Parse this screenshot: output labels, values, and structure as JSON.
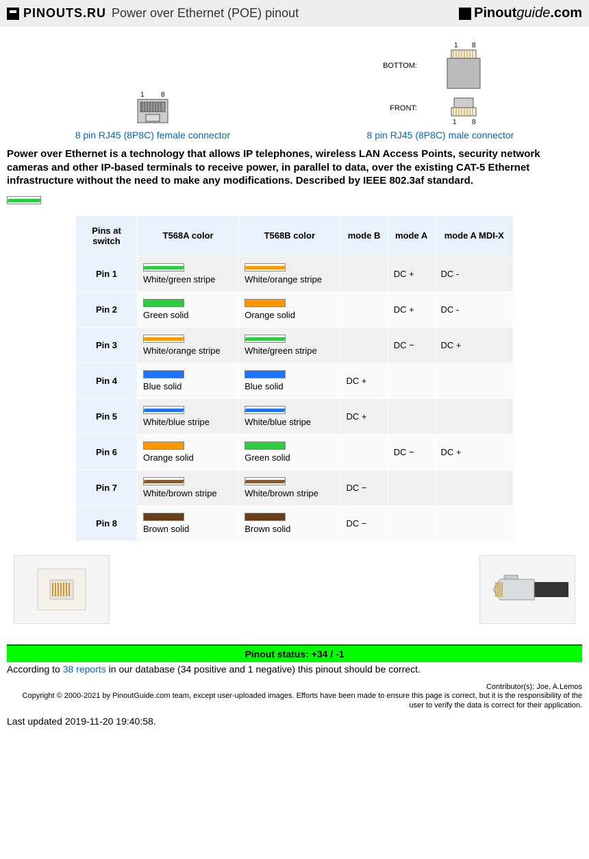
{
  "header": {
    "site_left": "PINOUTS.RU",
    "title": "Power over Ethernet (POE) pinout",
    "site_right_a": "Pinout",
    "site_right_b": "guide",
    "site_right_c": ".com"
  },
  "connectors": {
    "female": {
      "pin_left": "1",
      "pin_right": "8",
      "link": "8 pin RJ45 (8P8C) female connector"
    },
    "male": {
      "pin_left": "1",
      "pin_right": "8",
      "bottom_label": "BOTTOM:",
      "front_label": "FRONT:",
      "link": "8 pin RJ45 (8P8C) male connector"
    }
  },
  "intro": "Power over Ethernet is a technology that allows IP telephones, wireless LAN Access Points, security network cameras and other IP-based terminals to receive power, in parallel to data, over the existing CAT-5 Ethernet infrastructure without the need to make any modifications. Described by IEEE 802.3af standard.",
  "table": {
    "headers": [
      "Pins at switch",
      "T568A color",
      "T568B color",
      "mode B",
      "mode A",
      "mode A MDI-X"
    ],
    "rows": [
      {
        "pin": "Pin 1",
        "a": {
          "label": "White/green stripe",
          "type": "stripe",
          "color": "#2ecc40"
        },
        "b": {
          "label": "White/orange stripe",
          "type": "stripe",
          "color": "#ff9800"
        },
        "modeB": "",
        "modeA": "DC +",
        "modeAX": "DC -"
      },
      {
        "pin": "Pin 2",
        "a": {
          "label": "Green solid",
          "type": "solid",
          "color": "#2ecc40"
        },
        "b": {
          "label": "Orange solid",
          "type": "solid",
          "color": "#ff9800"
        },
        "modeB": "",
        "modeA": "DC +",
        "modeAX": "DC -"
      },
      {
        "pin": "Pin 3",
        "a": {
          "label": "White/orange stripe",
          "type": "stripe",
          "color": "#ff9800"
        },
        "b": {
          "label": "White/green stripe",
          "type": "stripe",
          "color": "#2ecc40"
        },
        "modeB": "",
        "modeA": "DC −",
        "modeAX": "DC +"
      },
      {
        "pin": "Pin 4",
        "a": {
          "label": "Blue solid",
          "type": "solid",
          "color": "#1e73ff"
        },
        "b": {
          "label": "Blue solid",
          "type": "solid",
          "color": "#1e73ff"
        },
        "modeB": "DC +",
        "modeA": "",
        "modeAX": ""
      },
      {
        "pin": "Pin 5",
        "a": {
          "label": "White/blue stripe",
          "type": "stripe",
          "color": "#1e73ff"
        },
        "b": {
          "label": "White/blue stripe",
          "type": "stripe",
          "color": "#1e73ff"
        },
        "modeB": "DC +",
        "modeA": "",
        "modeAX": ""
      },
      {
        "pin": "Pin 6",
        "a": {
          "label": "Orange solid",
          "type": "solid",
          "color": "#ff9800"
        },
        "b": {
          "label": "Green solid",
          "type": "solid",
          "color": "#2ecc40"
        },
        "modeB": "",
        "modeA": "DC −",
        "modeAX": "DC +"
      },
      {
        "pin": "Pin 7",
        "a": {
          "label": "White/brown stripe",
          "type": "stripe",
          "color": "#8b5a2b"
        },
        "b": {
          "label": "White/brown stripe",
          "type": "stripe",
          "color": "#8b5a2b"
        },
        "modeB": "DC −",
        "modeA": "",
        "modeAX": ""
      },
      {
        "pin": "Pin 8",
        "a": {
          "label": "Brown solid",
          "type": "solid",
          "color": "#6b3e1a"
        },
        "b": {
          "label": "Brown solid",
          "type": "solid",
          "color": "#6b3e1a"
        },
        "modeB": "DC −",
        "modeA": "",
        "modeAX": ""
      }
    ]
  },
  "intro_swatch": {
    "type": "stripe",
    "color": "#2ecc40"
  },
  "status": {
    "bar": "Pinout status: +34 / -1",
    "text_a": "According to ",
    "reports_link": "38 reports",
    "text_b": " in our database (34 positive and 1 negative) this pinout should be correct."
  },
  "contributors": "Contributor(s): Joe, A.Lemos",
  "copyright": "Copyright © 2000-2021 by PinoutGuide.com team, except user-uploaded images. Efforts have been made to ensure this page is correct, but it is the responsibility of the user to verify the data is correct for their application.",
  "updated": "Last updated 2019-11-20 19:40:58."
}
